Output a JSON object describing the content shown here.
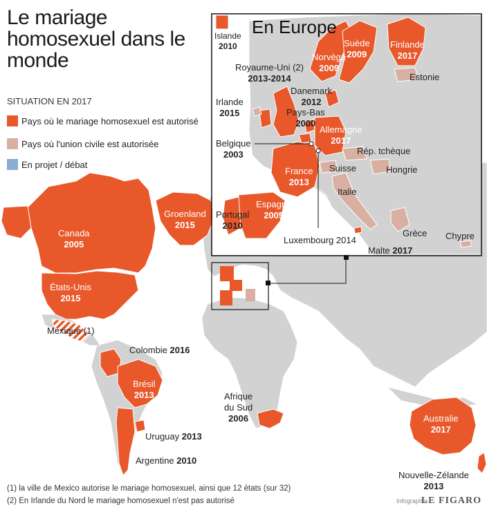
{
  "title": "Le mariage homosexuel dans le monde",
  "situation": "SITUATION EN 2017",
  "legend": [
    {
      "label": "Pays où le mariage homosexuel est autorisé",
      "color": "#e8582a"
    },
    {
      "label": "Pays où l'union civile est autorisée",
      "color": "#d8b0a2"
    },
    {
      "label": "En projet / débat",
      "color": "#8aaed0"
    }
  ],
  "world_labels": {
    "canada": {
      "name": "Canada",
      "year": "2005"
    },
    "usa": {
      "name": "États-Unis",
      "year": "2015"
    },
    "groenland": {
      "name": "Groenland",
      "year": "2015"
    },
    "mexique": {
      "name": "Mexique (1)"
    },
    "colombie": {
      "name": "Colombie",
      "year": "2016"
    },
    "bresil": {
      "name": "Brésil",
      "year": "2013"
    },
    "uruguay": {
      "name": "Uruguay",
      "year": "2013"
    },
    "argentine": {
      "name": "Argentine",
      "year": "2010"
    },
    "afrique_sud": {
      "name1": "Afrique",
      "name2": "du Sud",
      "year": "2006"
    },
    "australie": {
      "name": "Australie",
      "year": "2017"
    },
    "nz": {
      "name": "Nouvelle-Zélande",
      "year": "2013"
    }
  },
  "inset": {
    "title": "En Europe",
    "islande": {
      "name": "Islande",
      "year": "2010"
    },
    "labels": {
      "royaume_uni": {
        "name": "Royaume-Uni (2)",
        "year": "2013-2014"
      },
      "irlande": {
        "name": "Irlande",
        "year": "2015"
      },
      "danemark": {
        "name": "Danemark",
        "year": "2012"
      },
      "pays_bas": {
        "name": "Pays-Bas",
        "year": "2000"
      },
      "belgique": {
        "name": "Belgique",
        "year": "2003"
      },
      "allemagne": {
        "name": "Allemagne",
        "year": "2017"
      },
      "france": {
        "name": "France",
        "year": "2013"
      },
      "espagne": {
        "name": "Espagne",
        "year": "2005"
      },
      "portugal": {
        "name": "Portugal",
        "year": "2010"
      },
      "luxembourg": {
        "name": "Luxembourg",
        "year": "2014"
      },
      "norvege": {
        "name": "Norvège",
        "year": "2009"
      },
      "suede": {
        "name": "Suède",
        "year": "2009"
      },
      "finlande": {
        "name": "Finlande",
        "year": "2017"
      },
      "estonie": {
        "name": "Estonie"
      },
      "rep_tcheque": {
        "name": "Rép. tchèque"
      },
      "suisse": {
        "name": "Suisse"
      },
      "hongrie": {
        "name": "Hongrie"
      },
      "italie": {
        "name": "Italie"
      },
      "grece": {
        "name": "Grèce"
      },
      "chypre": {
        "name": "Chypre"
      },
      "malte": {
        "name": "Malte",
        "year": "2017"
      }
    }
  },
  "notes": [
    "(1) la ville de Mexico autorise le mariage homosexuel, ainsi que 12 états (sur 32)",
    "(2) En Irlande du Nord le mariage homosexuel n'est pas autorisé"
  ],
  "credit": {
    "small": "Infographie",
    "big": "LE FIGARO"
  },
  "colors": {
    "land": "#d2d2d2",
    "water": "#ffffff",
    "marriage": "#e8582a",
    "civil_union": "#d8b0a2",
    "project": "#8aaed0"
  }
}
